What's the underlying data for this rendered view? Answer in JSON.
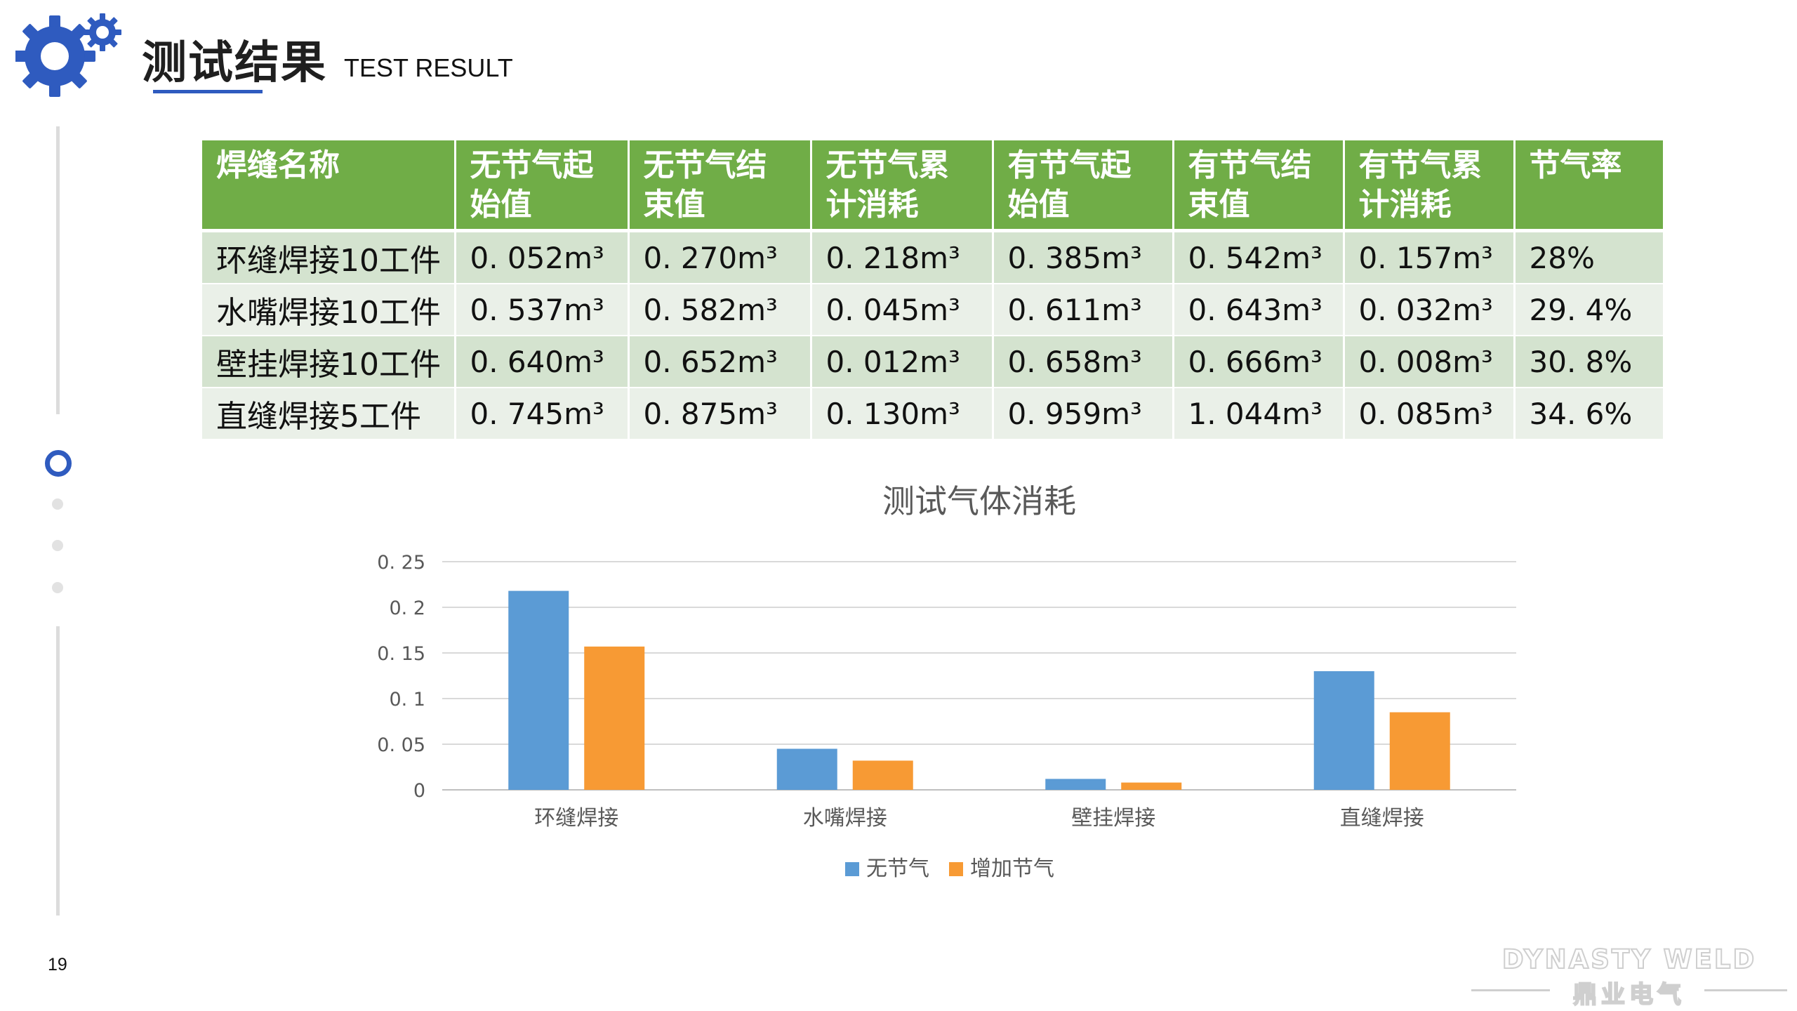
{
  "header": {
    "title_cn": "测试结果",
    "title_en": "TEST RESULT"
  },
  "page_number": "19",
  "brand": {
    "name_en": "DYNASTY WELD",
    "name_cn": "鼎业电气"
  },
  "colors": {
    "accent_blue": "#2f5bbf",
    "table_header_green": "#70ad47",
    "series_blue": "#5b9bd5",
    "series_orange": "#f79a34"
  },
  "table": {
    "headers": [
      [
        "焊缝名称"
      ],
      [
        "无节气起",
        "始值"
      ],
      [
        "无节气结",
        "束值"
      ],
      [
        "无节气累",
        "计消耗"
      ],
      [
        "有节气起",
        "始值"
      ],
      [
        "有节气结",
        "束值"
      ],
      [
        "有节气累",
        "计消耗"
      ],
      [
        "节气率"
      ]
    ],
    "rows": [
      [
        "环缝焊接10工件",
        "0. 052m³",
        "0. 270m³",
        "0. 218m³",
        "0. 385m³",
        "0. 542m³",
        "0. 157m³",
        "28%"
      ],
      [
        "水嘴焊接10工件",
        "0. 537m³",
        "0. 582m³",
        "0. 045m³",
        "0. 611m³",
        "0. 643m³",
        "0. 032m³",
        "29. 4%"
      ],
      [
        "壁挂焊接10工件",
        "0. 640m³",
        "0. 652m³",
        "0. 012m³",
        "0. 658m³",
        "0. 666m³",
        "0. 008m³",
        "30. 8%"
      ],
      [
        "直缝焊接5工件",
        "0. 745m³",
        "0. 875m³",
        "0. 130m³",
        "0. 959m³",
        "1. 044m³",
        "0. 085m³",
        "34. 6%"
      ]
    ]
  },
  "chart_data": {
    "type": "bar",
    "title": "测试气体消耗",
    "categories": [
      "环缝焊接",
      "水嘴焊接",
      "壁挂焊接",
      "直缝焊接"
    ],
    "series": [
      {
        "name": "无节气",
        "values": [
          0.218,
          0.045,
          0.012,
          0.13
        ],
        "color": "#5b9bd5"
      },
      {
        "name": "增加节气",
        "values": [
          0.157,
          0.032,
          0.008,
          0.085
        ],
        "color": "#f79a34"
      }
    ],
    "yticks": [
      "0",
      "0. 05",
      "0. 1",
      "0. 15",
      "0. 2",
      "0. 25"
    ],
    "ylim": [
      0,
      0.25
    ],
    "grid": true,
    "legend": "bottom"
  }
}
